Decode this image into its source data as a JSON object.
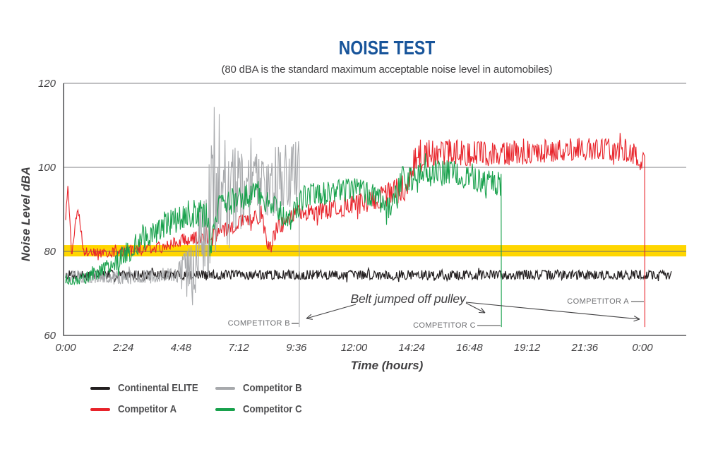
{
  "title": "NOISE TEST",
  "subtitle": "(80 dBA is the standard maximum acceptable noise level in automobiles)",
  "colors": {
    "title_blue": "#17549A",
    "band_yellow": "#FFD600",
    "grid_gray": "#808285",
    "axis_gray": "#58595B",
    "text_dark": "#414042",
    "text_gray": "#6D6E71",
    "continental_black": "#231F20",
    "competitor_a_red": "#E8232A",
    "competitor_b_gray": "#A7A9AC",
    "competitor_c_green": "#18A14C"
  },
  "chart_data": {
    "type": "line",
    "title": "NOISE TEST",
    "xlabel": "Time (hours)",
    "ylabel": "Noise Level dBA",
    "ylim": [
      60,
      120
    ],
    "y_ticks": [
      120,
      100,
      80,
      60
    ],
    "x_ticks": [
      "0:00",
      "2:24",
      "4:48",
      "7:12",
      "9:36",
      "12:00",
      "14:24",
      "16:48",
      "19:12",
      "21:36",
      "0:00"
    ],
    "x_tick_hours": [
      0,
      2.4,
      4.8,
      7.2,
      9.6,
      12,
      14.4,
      16.8,
      19.2,
      21.6,
      24
    ],
    "gridlines": [
      120,
      100
    ],
    "grid_on": true,
    "legend_position": "bottom-left",
    "threshold_band": {
      "center": 80,
      "from": 78.8,
      "to": 81.5,
      "color": "#FFD600",
      "meaning": "80 dBA standard maximum acceptable noise level"
    },
    "series": [
      {
        "name": "Continental ELITE",
        "color": "#231F20",
        "z": 4,
        "seed": 7,
        "width": 1.25,
        "end": 25.2,
        "mean": [
          [
            0,
            74.4
          ],
          [
            25.2,
            74.4
          ]
        ],
        "noise": [
          [
            0,
            1.1
          ],
          [
            25.2,
            1.1
          ]
        ]
      },
      {
        "name": "Competitor A",
        "color": "#E8232A",
        "z": 3,
        "seed": 3,
        "width": 1.1,
        "end": 24.1,
        "drop_at": 24.1,
        "drop_to": 62,
        "mean": [
          [
            0,
            88
          ],
          [
            0.1,
            96
          ],
          [
            0.25,
            79
          ],
          [
            0.5,
            91
          ],
          [
            0.75,
            80
          ],
          [
            1.5,
            79.5
          ],
          [
            2.5,
            80
          ],
          [
            4,
            81
          ],
          [
            5,
            83
          ],
          [
            6,
            83.5
          ],
          [
            6.6,
            85
          ],
          [
            7.3,
            87
          ],
          [
            8.15,
            88.5
          ],
          [
            8.45,
            80.5
          ],
          [
            8.75,
            85
          ],
          [
            9.3,
            89
          ],
          [
            10.5,
            89.5
          ],
          [
            12,
            91
          ],
          [
            13.5,
            93.5
          ],
          [
            14.3,
            96
          ],
          [
            14.55,
            103
          ],
          [
            16,
            103.5
          ],
          [
            18,
            103
          ],
          [
            20,
            104
          ],
          [
            22,
            104.5
          ],
          [
            23.5,
            104
          ],
          [
            24.1,
            101
          ]
        ],
        "noise": [
          [
            0,
            0.8
          ],
          [
            1,
            1.1
          ],
          [
            5,
            1.5
          ],
          [
            8,
            1.8
          ],
          [
            10,
            2
          ],
          [
            13,
            2.6
          ],
          [
            14.6,
            3.6
          ],
          [
            17,
            3
          ],
          [
            20,
            2.7
          ],
          [
            24.1,
            2.7
          ]
        ]
      },
      {
        "name": "Competitor B",
        "color": "#A7A9AC",
        "z": 2,
        "seed": 5,
        "width": 1.1,
        "end": 9.72,
        "drop_at": 9.72,
        "drop_to": 62,
        "mean": [
          [
            0,
            74
          ],
          [
            3,
            73.8
          ],
          [
            5.3,
            75
          ],
          [
            5.7,
            86
          ],
          [
            6.1,
            90
          ],
          [
            7,
            93
          ],
          [
            8,
            95
          ],
          [
            9.72,
            99
          ]
        ],
        "noise": [
          [
            0,
            1.4
          ],
          [
            4.6,
            1.8
          ],
          [
            5.5,
            10
          ],
          [
            6,
            16
          ],
          [
            6.8,
            13
          ],
          [
            7.5,
            9
          ],
          [
            9.72,
            7.5
          ]
        ]
      },
      {
        "name": "Competitor C",
        "color": "#18A14C",
        "z": 1,
        "seed": 9,
        "width": 1.1,
        "end": 18.13,
        "drop_at": 18.13,
        "drop_to": 62,
        "mean": [
          [
            0,
            73
          ],
          [
            0.8,
            73.5
          ],
          [
            2,
            77
          ],
          [
            3,
            82
          ],
          [
            4,
            86
          ],
          [
            5,
            89
          ],
          [
            5.9,
            89
          ],
          [
            6.02,
            79
          ],
          [
            6.2,
            90
          ],
          [
            7,
            92
          ],
          [
            7.8,
            94
          ],
          [
            8.8,
            90
          ],
          [
            9.3,
            87
          ],
          [
            9.9,
            93
          ],
          [
            11,
            94
          ],
          [
            12,
            95
          ],
          [
            12.9,
            93
          ],
          [
            13.35,
            89
          ],
          [
            14,
            97
          ],
          [
            15,
            98.5
          ],
          [
            16,
            99
          ],
          [
            17,
            97
          ],
          [
            18.13,
            96
          ]
        ],
        "noise": [
          [
            0,
            0.9
          ],
          [
            1.5,
            1.8
          ],
          [
            3,
            3
          ],
          [
            5,
            3.5
          ],
          [
            8,
            3
          ],
          [
            12,
            2.8
          ],
          [
            14,
            3.2
          ],
          [
            18.13,
            2.8
          ]
        ]
      }
    ],
    "annotations": {
      "note": "Belt jumped off pulley",
      "competitor_b": "COMPETITOR B",
      "competitor_c": "COMPETITOR C",
      "competitor_a": "COMPETITOR A",
      "events": [
        {
          "series": "Competitor B",
          "time_hours": 9.72,
          "event": "belt jumped off pulley"
        },
        {
          "series": "Competitor C",
          "time_hours": 18.13,
          "event": "belt jumped off pulley"
        },
        {
          "series": "Competitor A",
          "time_hours": 24.1,
          "event": "belt jumped off pulley"
        }
      ]
    }
  },
  "legend": {
    "items": [
      {
        "label": "Continental ELITE",
        "color": "#231F20"
      },
      {
        "label": "Competitor B",
        "color": "#A7A9AC"
      },
      {
        "label": "Competitor A",
        "color": "#E8232A"
      },
      {
        "label": "Competitor C",
        "color": "#18A14C"
      }
    ]
  }
}
